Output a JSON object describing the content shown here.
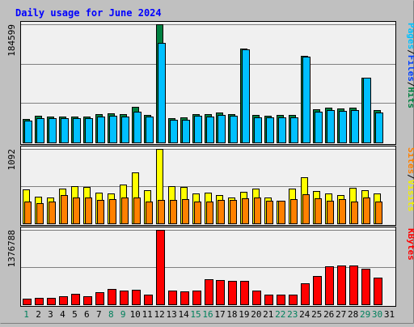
{
  "chart_data": {
    "type": "bar",
    "title": "Daily usage for June 2024",
    "categories": [
      "1",
      "2",
      "3",
      "4",
      "5",
      "6",
      "7",
      "8",
      "9",
      "10",
      "11",
      "12",
      "13",
      "14",
      "15",
      "16",
      "17",
      "18",
      "19",
      "20",
      "21",
      "22",
      "23",
      "24",
      "25",
      "26",
      "27",
      "28",
      "29",
      "30",
      "31"
    ],
    "weekend_categories": [
      "1",
      "8",
      "9",
      "15",
      "16",
      "22",
      "23",
      "29",
      "30"
    ],
    "panels": [
      {
        "name": "hits-files-pages",
        "ymax_label": "184599",
        "ylim": [
          0,
          184599
        ],
        "legend": [
          "Pages",
          "/",
          "Files",
          "/",
          "Hits"
        ],
        "series": [
          {
            "name": "Hits",
            "color": "#008040",
            "values": [
              36800,
              41200,
              40900,
              41000,
              40600,
              40800,
              44100,
              44900,
              43700,
              55700,
              43200,
              184599,
              37800,
              38600,
              44500,
              44000,
              46400,
              44200,
              147200,
              42600,
              42000,
              42500,
              42500,
              134900,
              51400,
              54100,
              52600,
              53800,
              101400,
              50500,
              null
            ]
          },
          {
            "name": "Files",
            "color": "#0040FF",
            "values": [
              34400,
              38100,
              38100,
              38000,
              37900,
              38000,
              41000,
              42100,
              40800,
              43200,
              40200,
              73900,
              34900,
              35800,
              41300,
              41000,
              43500,
              41400,
              32400,
              39700,
              39100,
              39400,
              39400,
              30600,
              47900,
              50400,
              49000,
              50100,
              62400,
              46800,
              null
            ]
          },
          {
            "name": "Pages",
            "color": "#00C0FF",
            "values": [
              34400,
              38100,
              38100,
              38000,
              37900,
              38000,
              41000,
              42100,
              40800,
              48200,
              40200,
              155000,
              34900,
              35800,
              41300,
              41000,
              43500,
              41400,
              145900,
              39700,
              39100,
              39400,
              39400,
              134500,
              47900,
              50400,
              49000,
              50100,
              100800,
              46800,
              null
            ]
          }
        ]
      },
      {
        "name": "visits-sites",
        "ymax_label": "1092",
        "ylim": [
          0,
          1092
        ],
        "legend": [
          "Sites",
          "/",
          "Visits"
        ],
        "series": [
          {
            "name": "Visits",
            "color": "#FFFF00",
            "values": [
              495,
              390,
              385,
              505,
              550,
              540,
              455,
              435,
              570,
              745,
              485,
              1092,
              550,
              530,
              435,
              455,
              410,
              385,
              460,
              515,
              385,
              330,
              510,
              680,
              480,
              435,
              410,
              525,
              485,
              445,
              null
            ]
          },
          {
            "name": "Sites",
            "color": "#FF8000",
            "values": [
              325,
              300,
              325,
              410,
              385,
              385,
              345,
              355,
              375,
              380,
              320,
              345,
              345,
              360,
              325,
              320,
              340,
              345,
              365,
              375,
              335,
              330,
              360,
              430,
              370,
              330,
              360,
              325,
              375,
              325,
              null
            ]
          }
        ]
      },
      {
        "name": "kbytes",
        "ymax_label": "1376788",
        "ylim": [
          0,
          1376788
        ],
        "legend": [
          "KBytes"
        ],
        "series": [
          {
            "name": "KBytes",
            "color": "#FF0000",
            "values": [
              110000,
              120000,
              125000,
              145000,
              195000,
              155000,
              225000,
              285000,
              255000,
              265000,
              180000,
              1376788,
              255000,
              235000,
              255000,
              465000,
              450000,
              440000,
              435000,
              250000,
              175000,
              180000,
              185000,
              395000,
              525000,
              710000,
              720000,
              715000,
              665000,
              490000,
              null
            ]
          }
        ]
      }
    ]
  },
  "colors": {
    "background": "#C0C0C0",
    "panel": "#F0F0F0",
    "title": "#0000FF",
    "weekday_label": "#000000",
    "weekend_label": "#00805C",
    "hits_label": "#008040",
    "files_label": "#0040FF",
    "pages_label": "#00C0FF",
    "visits_label": "#F0F000",
    "sites_label": "#FF8000",
    "kbytes_label": "#FF0000"
  }
}
